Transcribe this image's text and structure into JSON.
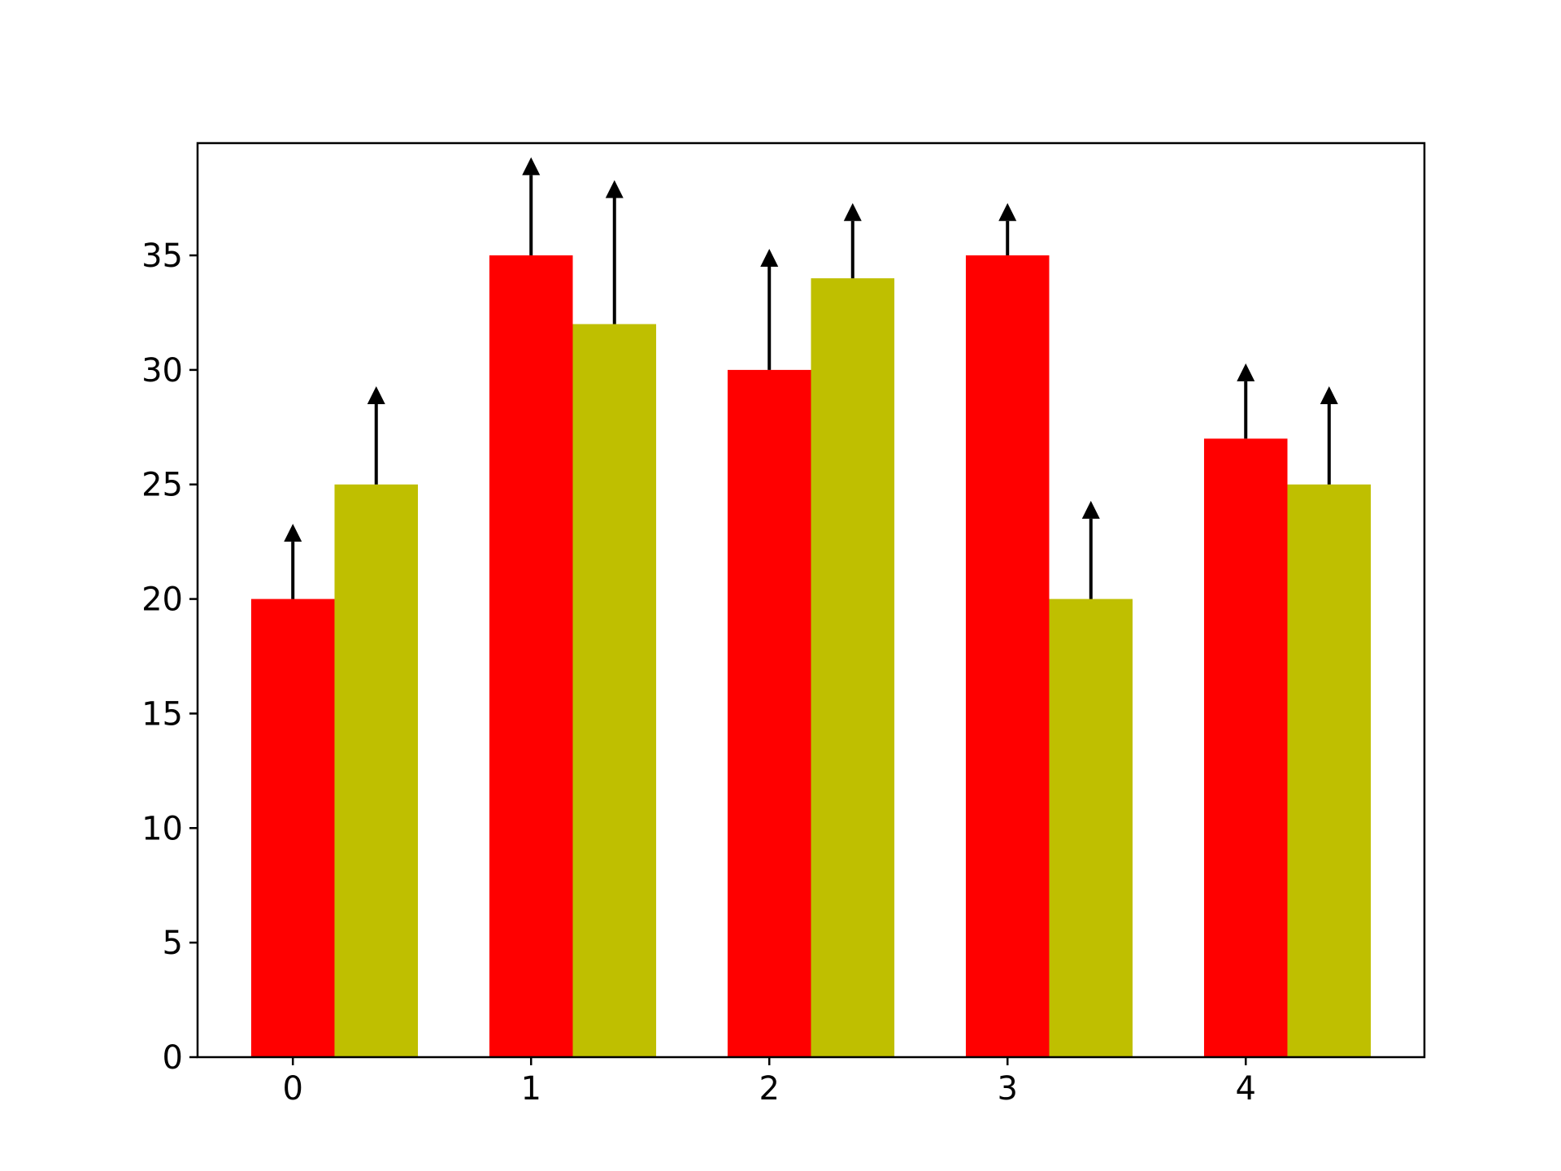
{
  "chart_data": {
    "type": "bar",
    "title": "",
    "xlabel": "",
    "ylabel": "",
    "categories": [
      "0",
      "1",
      "2",
      "3",
      "4"
    ],
    "x_ticks": [
      "0",
      "1",
      "2",
      "3",
      "4"
    ],
    "y_ticks": [
      "0",
      "5",
      "10",
      "15",
      "20",
      "25",
      "30",
      "35"
    ],
    "ylim": [
      0,
      39.9
    ],
    "grid": false,
    "legend": "none",
    "series": [
      {
        "color": "#ff0000",
        "values": [
          20,
          35,
          30,
          35,
          27
        ],
        "upper_errors": [
          3,
          4,
          5,
          2,
          3
        ]
      },
      {
        "color": "#bfbf00",
        "values": [
          25,
          32,
          34,
          20,
          25
        ],
        "upper_errors": [
          4,
          6,
          3,
          4,
          4
        ]
      }
    ]
  }
}
